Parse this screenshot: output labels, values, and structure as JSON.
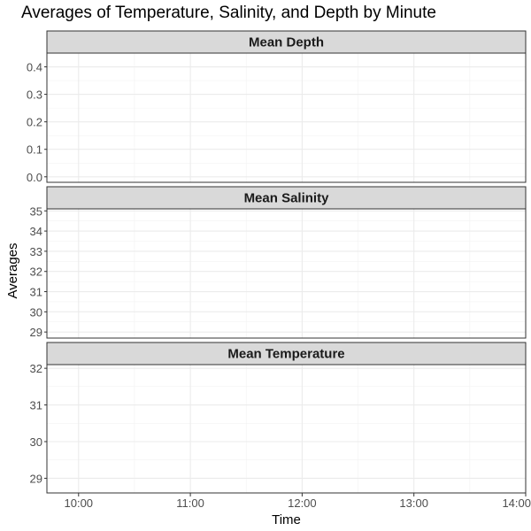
{
  "chart_data": {
    "type": "line",
    "title": "Averages of Temperature, Salinity, and Depth by Minute",
    "xlabel": "Time",
    "ylabel": "Averages",
    "x_ticks": [
      "10:00",
      "11:00",
      "12:00",
      "13:00",
      "14:00"
    ],
    "xlim": [
      "09:43",
      "14:00"
    ],
    "grid": true,
    "facets": [
      {
        "name": "Mean Depth",
        "ylim": [
          -0.02,
          0.45
        ],
        "y_ticks": [
          0.0,
          0.1,
          0.2,
          0.3,
          0.4
        ],
        "y_tick_labels": [
          "0.0",
          "0.1",
          "0.2",
          "0.3",
          "0.4"
        ],
        "values": []
      },
      {
        "name": "Mean Salinity",
        "ylim": [
          28.7,
          35.1
        ],
        "y_ticks": [
          29,
          30,
          31,
          32,
          33,
          34,
          35
        ],
        "y_tick_labels": [
          "29",
          "30",
          "31",
          "32",
          "33",
          "34",
          "35"
        ],
        "values": []
      },
      {
        "name": "Mean Temperature",
        "ylim": [
          28.6,
          32.1
        ],
        "y_ticks": [
          29,
          30,
          31,
          32
        ],
        "y_tick_labels": [
          "29",
          "30",
          "31",
          "32"
        ],
        "values": []
      }
    ]
  }
}
